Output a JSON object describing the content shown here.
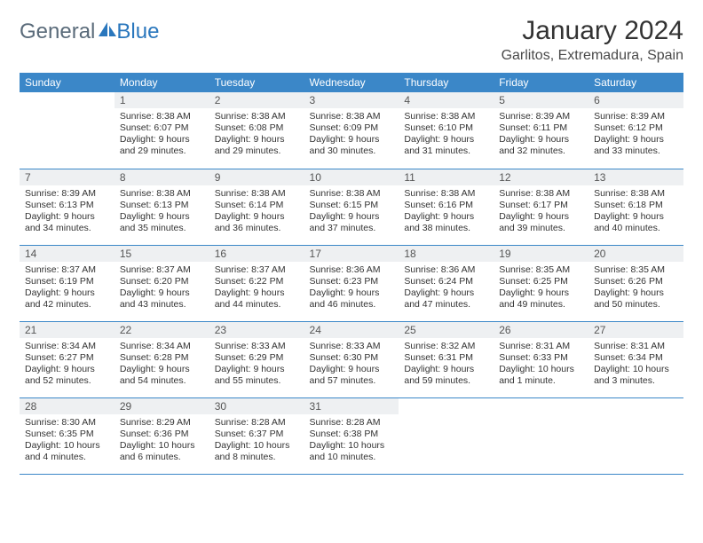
{
  "logo": {
    "text1": "General",
    "text2": "Blue"
  },
  "title": "January 2024",
  "location": "Garlitos, Extremadura, Spain",
  "colors": {
    "header_bg": "#3b87c8",
    "header_text": "#ffffff",
    "daynum_bg": "#eef0f2",
    "border": "#3b87c8",
    "logo_gray": "#5a6b7a",
    "logo_blue": "#2a77bd"
  },
  "fonts": {
    "title_size": 30,
    "location_size": 16,
    "header_size": 12,
    "daynum_size": 12,
    "body_size": 10.5
  },
  "dayNames": [
    "Sunday",
    "Monday",
    "Tuesday",
    "Wednesday",
    "Thursday",
    "Friday",
    "Saturday"
  ],
  "weeks": [
    [
      {
        "blank": true
      },
      {
        "n": "1",
        "sr": "8:38 AM",
        "ss": "6:07 PM",
        "dl": "9 hours and 29 minutes."
      },
      {
        "n": "2",
        "sr": "8:38 AM",
        "ss": "6:08 PM",
        "dl": "9 hours and 29 minutes."
      },
      {
        "n": "3",
        "sr": "8:38 AM",
        "ss": "6:09 PM",
        "dl": "9 hours and 30 minutes."
      },
      {
        "n": "4",
        "sr": "8:38 AM",
        "ss": "6:10 PM",
        "dl": "9 hours and 31 minutes."
      },
      {
        "n": "5",
        "sr": "8:39 AM",
        "ss": "6:11 PM",
        "dl": "9 hours and 32 minutes."
      },
      {
        "n": "6",
        "sr": "8:39 AM",
        "ss": "6:12 PM",
        "dl": "9 hours and 33 minutes."
      }
    ],
    [
      {
        "n": "7",
        "sr": "8:39 AM",
        "ss": "6:13 PM",
        "dl": "9 hours and 34 minutes."
      },
      {
        "n": "8",
        "sr": "8:38 AM",
        "ss": "6:13 PM",
        "dl": "9 hours and 35 minutes."
      },
      {
        "n": "9",
        "sr": "8:38 AM",
        "ss": "6:14 PM",
        "dl": "9 hours and 36 minutes."
      },
      {
        "n": "10",
        "sr": "8:38 AM",
        "ss": "6:15 PM",
        "dl": "9 hours and 37 minutes."
      },
      {
        "n": "11",
        "sr": "8:38 AM",
        "ss": "6:16 PM",
        "dl": "9 hours and 38 minutes."
      },
      {
        "n": "12",
        "sr": "8:38 AM",
        "ss": "6:17 PM",
        "dl": "9 hours and 39 minutes."
      },
      {
        "n": "13",
        "sr": "8:38 AM",
        "ss": "6:18 PM",
        "dl": "9 hours and 40 minutes."
      }
    ],
    [
      {
        "n": "14",
        "sr": "8:37 AM",
        "ss": "6:19 PM",
        "dl": "9 hours and 42 minutes."
      },
      {
        "n": "15",
        "sr": "8:37 AM",
        "ss": "6:20 PM",
        "dl": "9 hours and 43 minutes."
      },
      {
        "n": "16",
        "sr": "8:37 AM",
        "ss": "6:22 PM",
        "dl": "9 hours and 44 minutes."
      },
      {
        "n": "17",
        "sr": "8:36 AM",
        "ss": "6:23 PM",
        "dl": "9 hours and 46 minutes."
      },
      {
        "n": "18",
        "sr": "8:36 AM",
        "ss": "6:24 PM",
        "dl": "9 hours and 47 minutes."
      },
      {
        "n": "19",
        "sr": "8:35 AM",
        "ss": "6:25 PM",
        "dl": "9 hours and 49 minutes."
      },
      {
        "n": "20",
        "sr": "8:35 AM",
        "ss": "6:26 PM",
        "dl": "9 hours and 50 minutes."
      }
    ],
    [
      {
        "n": "21",
        "sr": "8:34 AM",
        "ss": "6:27 PM",
        "dl": "9 hours and 52 minutes."
      },
      {
        "n": "22",
        "sr": "8:34 AM",
        "ss": "6:28 PM",
        "dl": "9 hours and 54 minutes."
      },
      {
        "n": "23",
        "sr": "8:33 AM",
        "ss": "6:29 PM",
        "dl": "9 hours and 55 minutes."
      },
      {
        "n": "24",
        "sr": "8:33 AM",
        "ss": "6:30 PM",
        "dl": "9 hours and 57 minutes."
      },
      {
        "n": "25",
        "sr": "8:32 AM",
        "ss": "6:31 PM",
        "dl": "9 hours and 59 minutes."
      },
      {
        "n": "26",
        "sr": "8:31 AM",
        "ss": "6:33 PM",
        "dl": "10 hours and 1 minute."
      },
      {
        "n": "27",
        "sr": "8:31 AM",
        "ss": "6:34 PM",
        "dl": "10 hours and 3 minutes."
      }
    ],
    [
      {
        "n": "28",
        "sr": "8:30 AM",
        "ss": "6:35 PM",
        "dl": "10 hours and 4 minutes."
      },
      {
        "n": "29",
        "sr": "8:29 AM",
        "ss": "6:36 PM",
        "dl": "10 hours and 6 minutes."
      },
      {
        "n": "30",
        "sr": "8:28 AM",
        "ss": "6:37 PM",
        "dl": "10 hours and 8 minutes."
      },
      {
        "n": "31",
        "sr": "8:28 AM",
        "ss": "6:38 PM",
        "dl": "10 hours and 10 minutes."
      },
      {
        "blank": true
      },
      {
        "blank": true
      },
      {
        "blank": true
      }
    ]
  ],
  "labels": {
    "sunrise": "Sunrise:",
    "sunset": "Sunset:",
    "daylight": "Daylight:"
  }
}
